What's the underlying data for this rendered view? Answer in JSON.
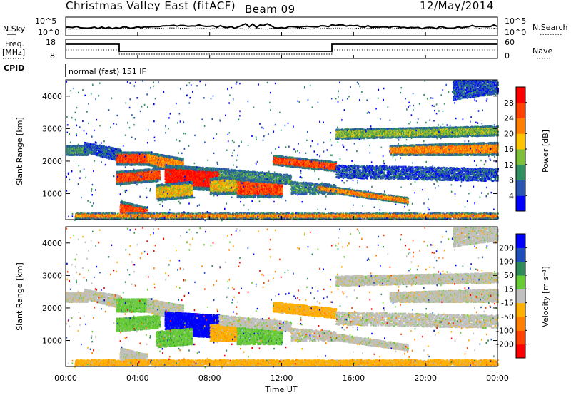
{
  "header": {
    "station": "Christmas Valley East (fitACF)",
    "beam": "Beam 09",
    "date": "12/May/2014"
  },
  "noise_panel": {
    "left_label": "N.Sky",
    "right_label": "N.Search",
    "ticks": [
      "10^5",
      "10^0"
    ],
    "right_ticks": [
      "10^5",
      "10^0"
    ]
  },
  "freq_panel": {
    "left_label_line1": "Freq.",
    "left_label_line2": "[MHz]",
    "right_label": "Nave",
    "left_ticks": [
      "18",
      "8"
    ],
    "right_ticks": [
      "60",
      "0"
    ],
    "cpid_label": "CPID",
    "mode_text": "normal (fast) 151 IF"
  },
  "chart_data": [
    {
      "type": "heatmap",
      "title": "",
      "ylabel": "Slant Range [km]",
      "xlabel": "",
      "xlim_hours": [
        0,
        24
      ],
      "ylim_km": [
        200,
        4500
      ],
      "y_ticks": [
        "1000",
        "2000",
        "3000",
        "4000"
      ],
      "colorbar_label": "Power [dB]",
      "colorbar_ticks": [
        "4",
        "8",
        "12",
        "16",
        "20",
        "24",
        "28"
      ],
      "colorbar_colors": [
        "#0000ff",
        "#2a55b0",
        "#2f8f5f",
        "#7dbf3a",
        "#ffc400",
        "#ff8000",
        "#ff4000",
        "#ff0000"
      ]
    },
    {
      "type": "heatmap",
      "title": "",
      "ylabel": "Slant Range [km]",
      "xlabel": "Time UT",
      "xlim_hours": [
        0,
        24
      ],
      "ylim_km": [
        200,
        4500
      ],
      "y_ticks": [
        "1000",
        "2000",
        "3000",
        "4000"
      ],
      "x_ticks": [
        "00:00",
        "04:00",
        "08:00",
        "12:00",
        "16:00",
        "20:00",
        "00:00"
      ],
      "colorbar_label": "Velocity [m s⁻¹]",
      "colorbar_ticks": [
        "200",
        "100",
        "50",
        "15",
        "-15",
        "-50",
        "-100",
        "-200"
      ],
      "colorbar_colors": [
        "#0000ff",
        "#1f4fb8",
        "#2e8b57",
        "#66cc33",
        "#c0c0c0",
        "#ffb000",
        "#ff8000",
        "#ff4000",
        "#ff0000"
      ]
    }
  ]
}
